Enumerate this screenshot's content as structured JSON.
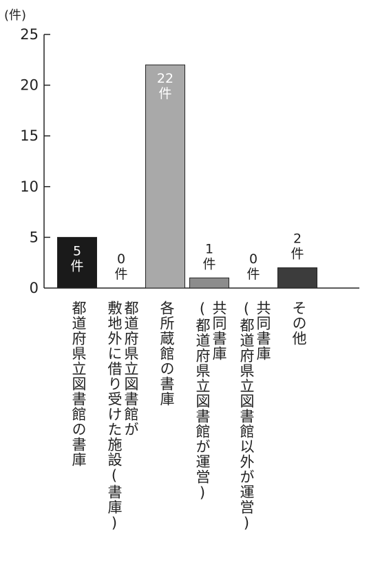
{
  "chart_data": {
    "type": "bar",
    "unit_label": "(件)",
    "value_unit": "件",
    "ylim": [
      0,
      25
    ],
    "yticks": [
      0,
      5,
      10,
      15,
      20,
      25
    ],
    "grid": false,
    "categories": [
      [
        "都道府県立図書館の書庫"
      ],
      [
        "都道府県立図書館が",
        "敷地外に借り受けた施設(書庫)"
      ],
      [
        "各所蔵館の書庫"
      ],
      [
        "共同書庫",
        "(都道府県立図書館が運営)"
      ],
      [
        "共同書庫",
        "(都道府県立図書館以外が運営)"
      ],
      [
        "その他"
      ]
    ],
    "values": [
      5,
      0,
      22,
      1,
      0,
      2
    ],
    "bar_colors": [
      "#1a1a1a",
      "#ffffff",
      "#a9a9a9",
      "#8c8c8c",
      "#ffffff",
      "#3c3c3c"
    ],
    "label_inside": [
      true,
      false,
      true,
      false,
      false,
      false
    ]
  }
}
